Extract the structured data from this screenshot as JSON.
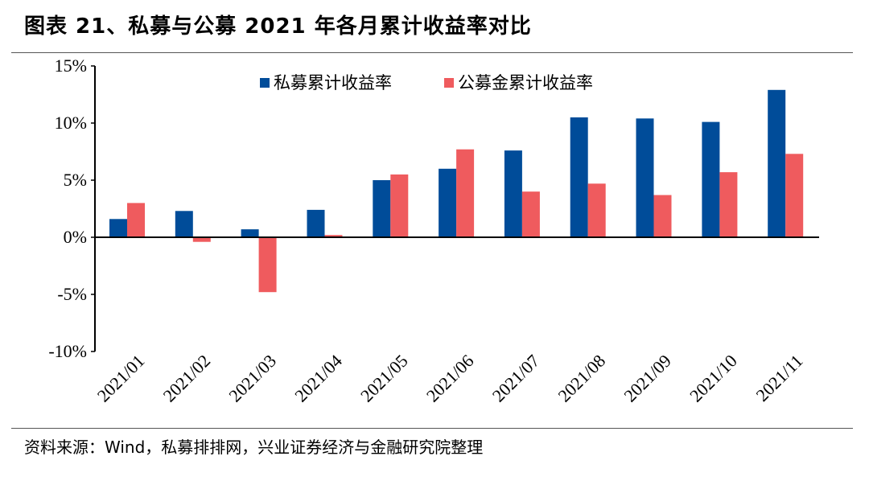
{
  "figure": {
    "title": "图表 21、私募与公募 2021 年各月累计收益率对比",
    "source": "资料来源：Wind，私募排排网，兴业证券经济与金融研究院整理"
  },
  "colors": {
    "private": "#004C99",
    "public": "#EF5B5E",
    "axis": "#000000"
  },
  "chart_data": {
    "type": "bar",
    "categories": [
      "2021/01",
      "2021/02",
      "2021/03",
      "2021/04",
      "2021/05",
      "2021/06",
      "2021/07",
      "2021/08",
      "2021/09",
      "2021/10",
      "2021/11"
    ],
    "series": [
      {
        "name": "私募累计收益率",
        "values": [
          1.6,
          2.3,
          0.7,
          2.4,
          5.0,
          6.0,
          7.6,
          10.5,
          10.4,
          10.1,
          12.9
        ]
      },
      {
        "name": "公募金累计收益率",
        "values": [
          3.0,
          -0.4,
          -4.8,
          0.2,
          5.5,
          7.7,
          4.0,
          4.7,
          3.7,
          5.7,
          7.3
        ]
      }
    ],
    "ylim": [
      -10,
      15
    ],
    "yticks": [
      "15%",
      "10%",
      "5%",
      "0%",
      "-5%",
      "-10%"
    ],
    "ytick_values": [
      15,
      10,
      5,
      0,
      -5,
      -10
    ],
    "legend_position": "top-center",
    "grid": false
  }
}
